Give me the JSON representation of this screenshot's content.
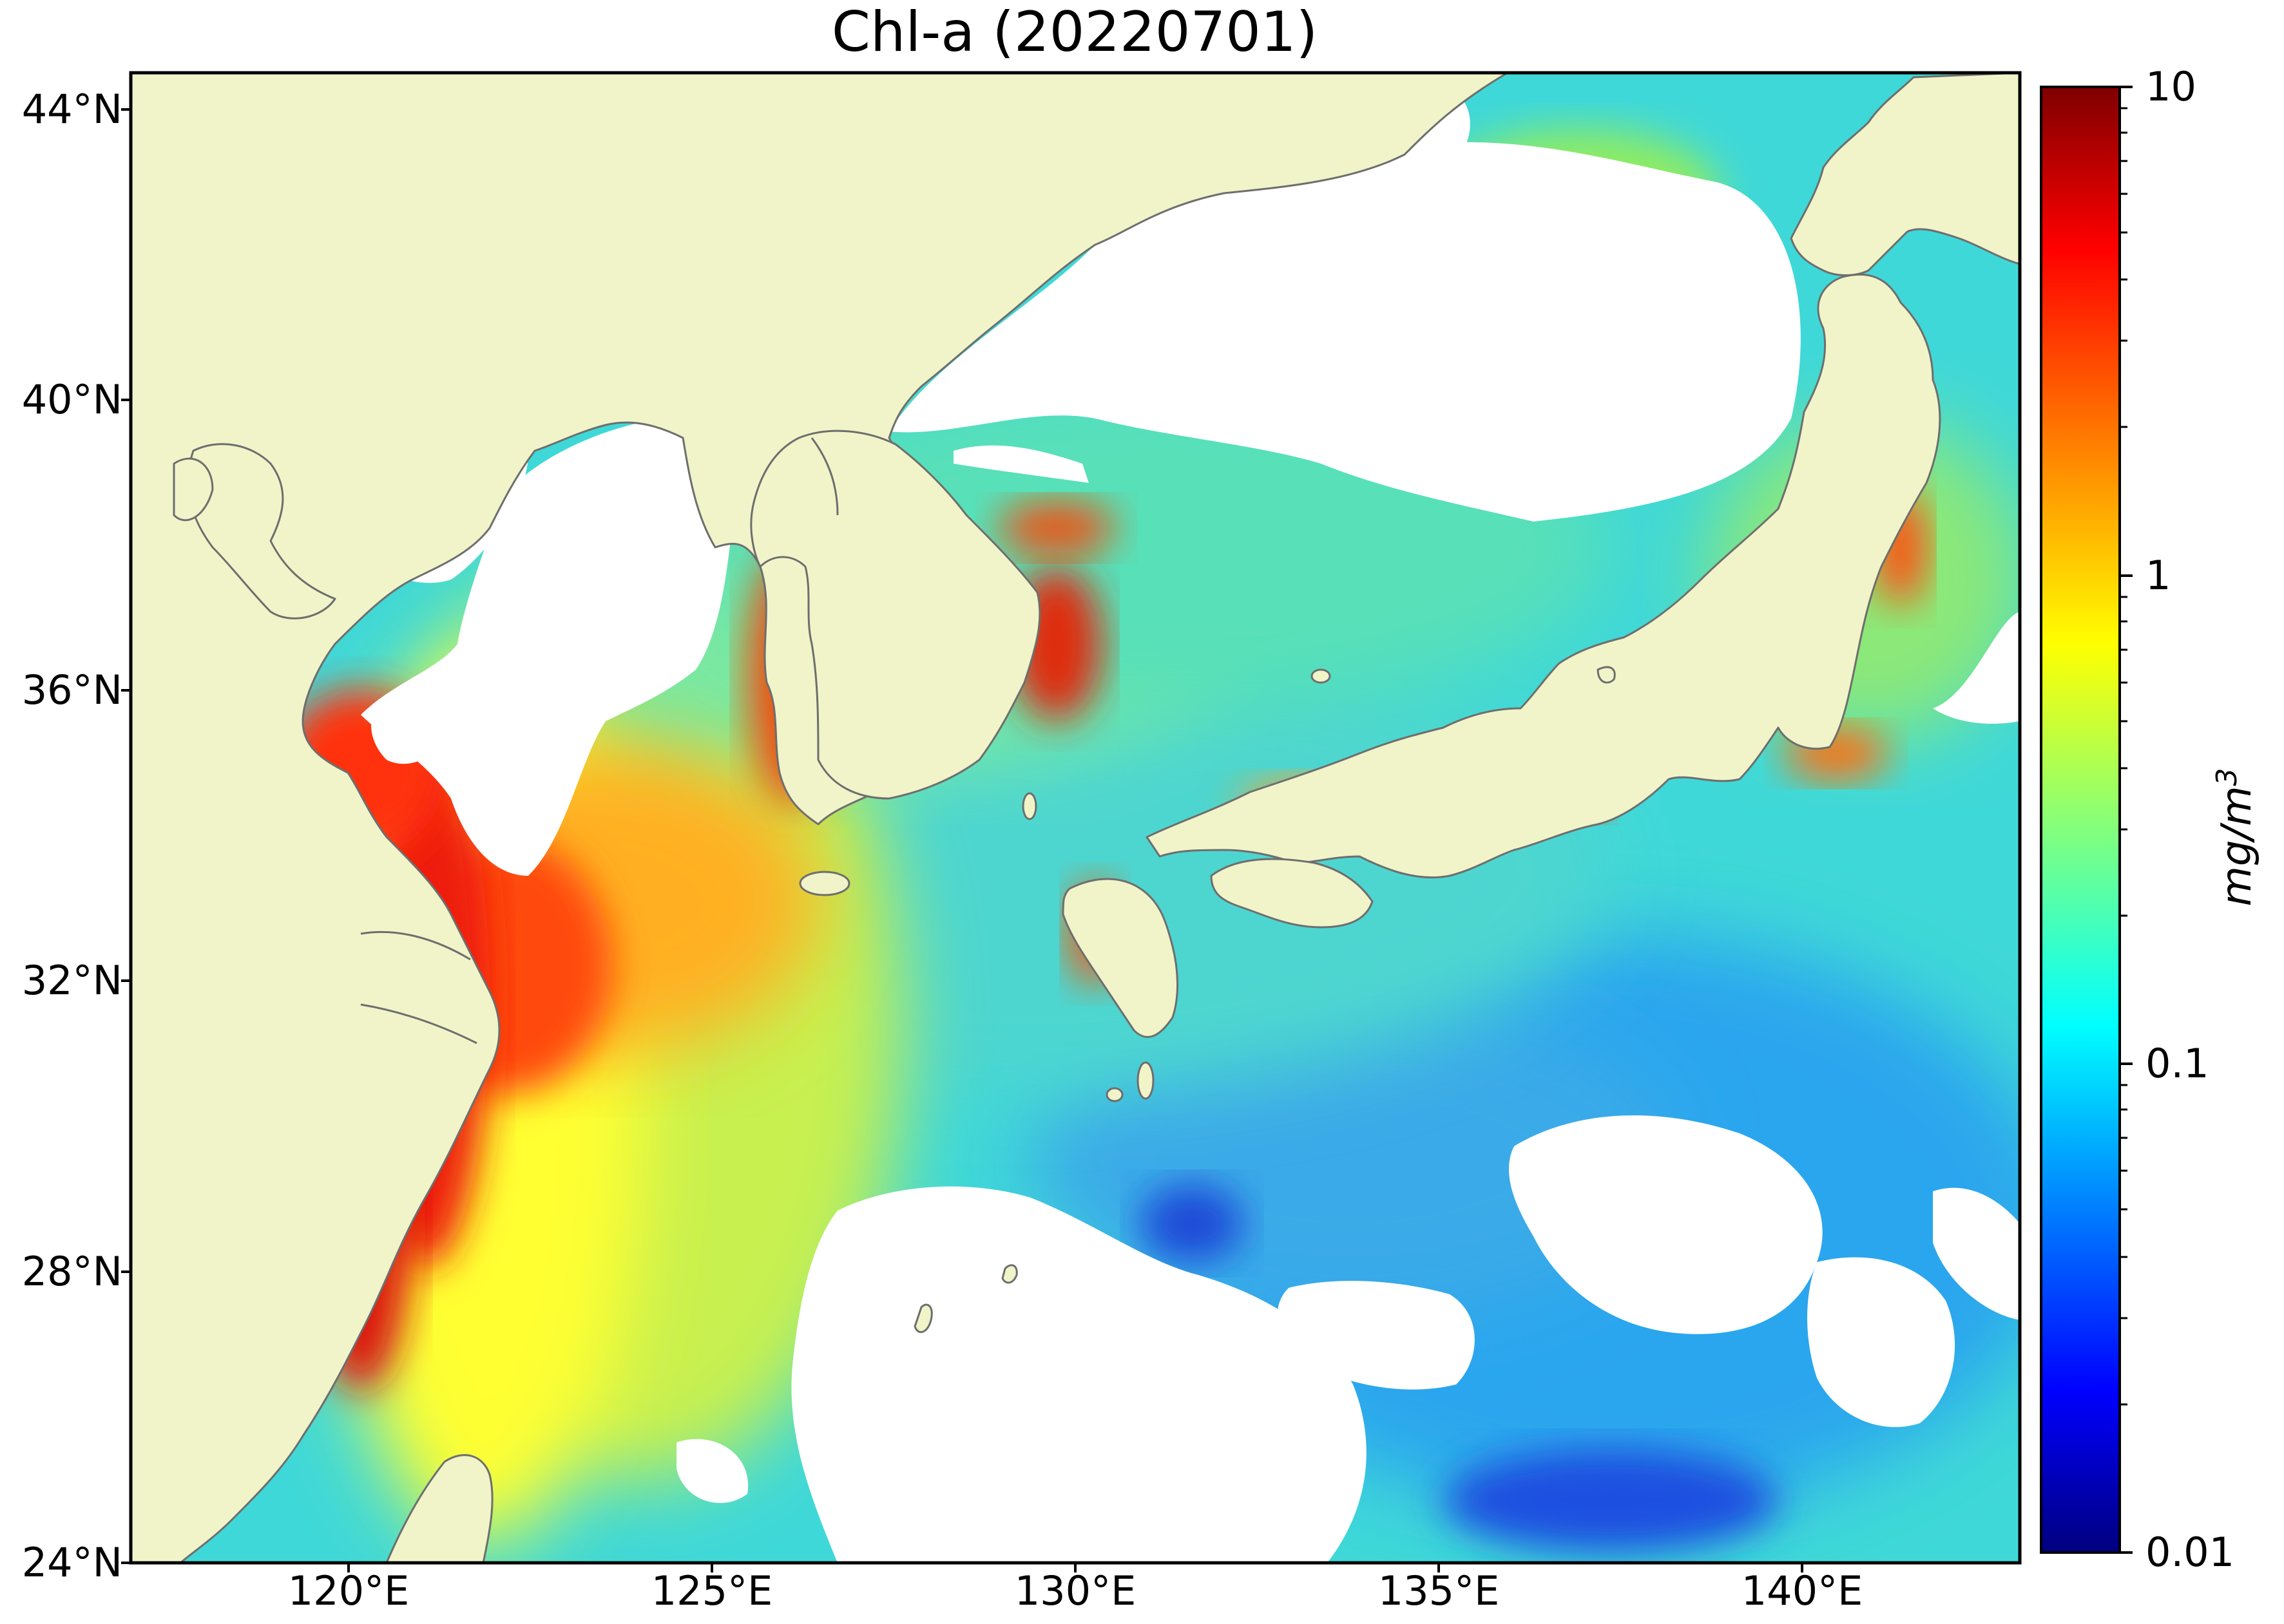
{
  "title": "Chl-a (20220701)",
  "map": {
    "lon_range": [
      117,
      143
    ],
    "lat_range": [
      24,
      44.5
    ],
    "lat_ticks": [
      "44°N",
      "40°N",
      "36°N",
      "32°N",
      "28°N",
      "24°N"
    ],
    "lon_ticks": [
      "120°E",
      "125°E",
      "130°E",
      "135°E",
      "140°E"
    ],
    "colors": {
      "land": "#f0f4c8",
      "cloud_no_data": "#ffffff",
      "coastline": "#6e6e6e"
    }
  },
  "colorbar": {
    "scale": "log",
    "range": [
      0.01,
      10
    ],
    "ticks": [
      "10",
      "1",
      "0.1",
      "0.01"
    ],
    "label": "mg/m",
    "label_sup": "3",
    "colormap": "jet"
  }
}
